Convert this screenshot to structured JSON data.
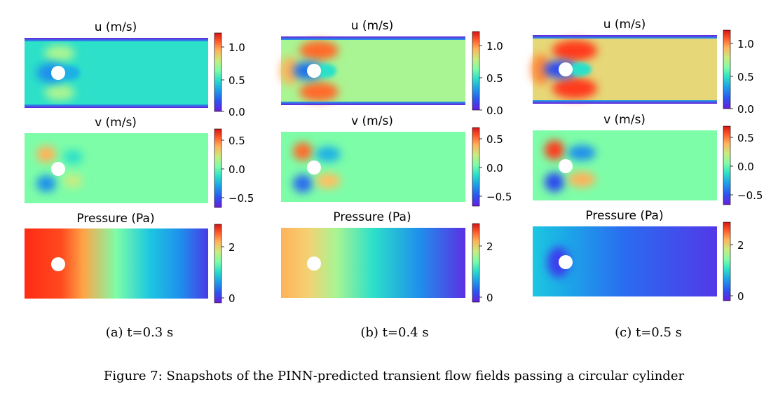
{
  "figure": {
    "caption": "Figure 7: Snapshots of the PINN-predicted transient flow fields passing a circular cylinder",
    "panels": [
      {
        "caption": "(a) t=0.3 s",
        "fields": [
          {
            "title": "u (m/s)",
            "ticks": [
              "1.0",
              "0.5",
              "0.0"
            ]
          },
          {
            "title": "v (m/s)",
            "ticks": [
              "0.5",
              "0.0",
              "−0.5"
            ]
          },
          {
            "title": "Pressure (Pa)",
            "ticks": [
              "2",
              "0"
            ]
          }
        ]
      },
      {
        "caption": "(b) t=0.4 s",
        "fields": [
          {
            "title": "u (m/s)",
            "ticks": [
              "1.0",
              "0.5",
              "0.0"
            ]
          },
          {
            "title": "v (m/s)",
            "ticks": [
              "0.5",
              "0.0",
              "−0.5"
            ]
          },
          {
            "title": "Pressure (Pa)",
            "ticks": [
              "2",
              "0"
            ]
          }
        ]
      },
      {
        "caption": "(c) t=0.5 s",
        "fields": [
          {
            "title": "u (m/s)",
            "ticks": [
              "1.0",
              "0.5",
              "0.0"
            ]
          },
          {
            "title": "v (m/s)",
            "ticks": [
              "0.5",
              "0.0",
              "−0.5"
            ]
          },
          {
            "title": "Pressure (Pa)",
            "ticks": [
              "2",
              "0"
            ]
          }
        ]
      }
    ]
  },
  "colormap": [
    "#6a1ddd",
    "#2b54f0",
    "#1c9fe8",
    "#2ce0c9",
    "#7dfda8",
    "#c9ec7f",
    "#ffb25a",
    "#ff5428",
    "#d41515"
  ]
}
